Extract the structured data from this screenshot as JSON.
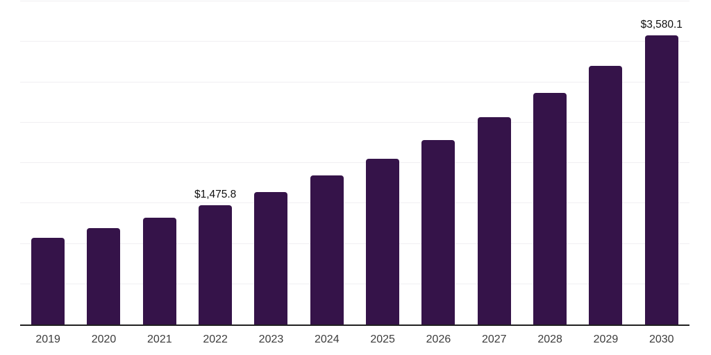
{
  "chart_data": {
    "type": "bar",
    "title": "",
    "xlabel": "",
    "ylabel": "",
    "categories": [
      "2019",
      "2020",
      "2021",
      "2022",
      "2023",
      "2024",
      "2025",
      "2026",
      "2027",
      "2028",
      "2029",
      "2030"
    ],
    "values": [
      1072,
      1191,
      1322,
      1475.8,
      1637,
      1842,
      2055,
      2285,
      2567,
      2865,
      3206,
      3580.1
    ],
    "data_labels": {
      "2022": "$1,475.8",
      "2030": "$3,580.1"
    },
    "ylim": [
      0,
      4000
    ],
    "gridline_step": 500,
    "grid": "horizontal-only",
    "y_tick_labels_visible": false,
    "legend": "none"
  },
  "colors": {
    "bar": "#351349",
    "gridline": "#f0eff2",
    "axis": "#202020",
    "tick_label": "#3c3c3c",
    "data_label": "#0f0f0f",
    "background": "#ffffff"
  }
}
